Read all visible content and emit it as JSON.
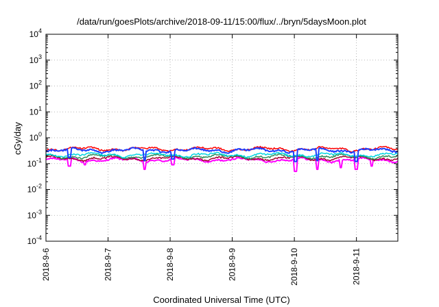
{
  "chart_data": {
    "type": "line",
    "title": "/data/run/goesPlots/archive/2018-09-11/15:00/flux/../bryn/5daysMoon.plot",
    "xlabel": "Coordinated Universal Time (UTC)",
    "ylabel": "cGy/day",
    "yscale": "log",
    "ylim": [
      0.0001,
      10000
    ],
    "xlim": [
      "2018-09-06",
      "2018-09-11T16:00"
    ],
    "grid": true,
    "legend": "none",
    "x_ticks": [
      "2018-9-6",
      "2018-9-7",
      "2018-9-8",
      "2018-9-9",
      "2018-9-10",
      "2018-9-11"
    ],
    "y_ticks": [
      {
        "base": "10",
        "exp": "-4",
        "value": 0.0001
      },
      {
        "base": "10",
        "exp": "-3",
        "value": 0.001
      },
      {
        "base": "10",
        "exp": "-2",
        "value": 0.01
      },
      {
        "base": "10",
        "exp": "-1",
        "value": 0.1
      },
      {
        "base": "10",
        "exp": "0",
        "value": 1
      },
      {
        "base": "10",
        "exp": "1",
        "value": 10
      },
      {
        "base": "10",
        "exp": "2",
        "value": 100
      },
      {
        "base": "10",
        "exp": "3",
        "value": 1000
      },
      {
        "base": "10",
        "exp": "4",
        "value": 10000
      }
    ],
    "series": [
      {
        "color": "#ff00ff",
        "base": 0.14,
        "dips": [
          {
            "x": "2018-09-06T09:00",
            "y": 0.08
          },
          {
            "x": "2018-09-06T15:00",
            "y": 0.09
          },
          {
            "x": "2018-09-07T14:00",
            "y": 0.06
          },
          {
            "x": "2018-09-08T01:00",
            "y": 0.09
          },
          {
            "x": "2018-09-10T00:30",
            "y": 0.05
          },
          {
            "x": "2018-09-10T09:00",
            "y": 0.06
          },
          {
            "x": "2018-09-10T18:00",
            "y": 0.07
          },
          {
            "x": "2018-09-11T00:00",
            "y": 0.06
          },
          {
            "x": "2018-09-11T06:00",
            "y": 0.08
          }
        ]
      },
      {
        "color": "#a0002c",
        "base": 0.16,
        "dips": []
      },
      {
        "color": "#2e8b57",
        "base": 0.19,
        "dips": []
      },
      {
        "color": "#00d5e0",
        "base": 0.22,
        "dips": []
      },
      {
        "color": "#ff0000",
        "base": 0.37,
        "dips": []
      },
      {
        "color": "#1e3cff",
        "base": 0.33,
        "dips": [
          {
            "x": "2018-09-06T09:00",
            "y": 0.17
          },
          {
            "x": "2018-09-07T14:00",
            "y": 0.13
          },
          {
            "x": "2018-09-08T01:00",
            "y": 0.15
          },
          {
            "x": "2018-09-10T00:30",
            "y": 0.12
          },
          {
            "x": "2018-09-10T09:00",
            "y": 0.13
          },
          {
            "x": "2018-09-11T00:00",
            "y": 0.12
          }
        ]
      }
    ]
  }
}
